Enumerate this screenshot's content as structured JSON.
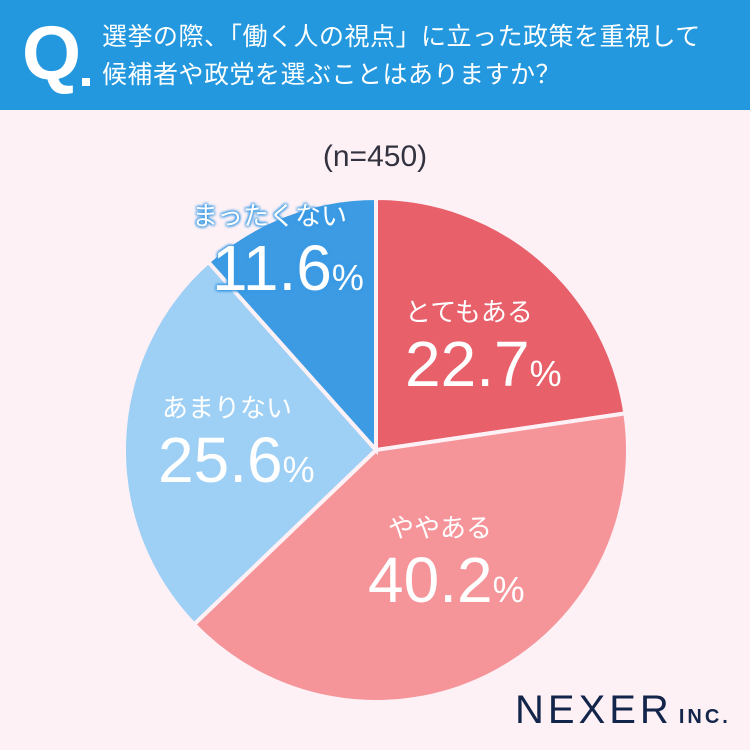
{
  "header": {
    "q_mark": "Q",
    "question_line1": "選挙の際、「働く人の視点」に立った政策を重視して",
    "question_line2": "候補者や政党を選ぶことはありますか？"
  },
  "sample_size": "(n=450)",
  "logo": {
    "name": "NEXER",
    "suffix": "INC."
  },
  "colors": {
    "header_bg": "#2398de",
    "page_bg": "#fdf1f6",
    "totemo_aru": "#e8606a",
    "yaya_aru": "#f59599",
    "amari_nai": "#9ecff5",
    "mattaku_nai": "#3d9be4"
  },
  "slices": [
    {
      "label": "とてもある",
      "value": "22.7",
      "unit": "%"
    },
    {
      "label": "ややある",
      "value": "40.2",
      "unit": "%"
    },
    {
      "label": "あまりない",
      "value": "25.6",
      "unit": "%"
    },
    {
      "label": "まったくない",
      "value": "11.6",
      "unit": "%"
    }
  ],
  "chart_data": {
    "type": "pie",
    "title": "選挙の際、「働く人の視点」に立った政策を重視して候補者や政党を選ぶことはありますか？",
    "subtitle": "(n=450)",
    "categories": [
      "とてもある",
      "ややある",
      "あまりない",
      "まったくない"
    ],
    "values": [
      22.7,
      40.2,
      25.6,
      11.6
    ],
    "unit": "%",
    "colors": [
      "#e8606a",
      "#f59599",
      "#9ecff5",
      "#3d9be4"
    ],
    "start_angle": "12 o'clock, clockwise",
    "legend": "none (labels inside slices)"
  }
}
